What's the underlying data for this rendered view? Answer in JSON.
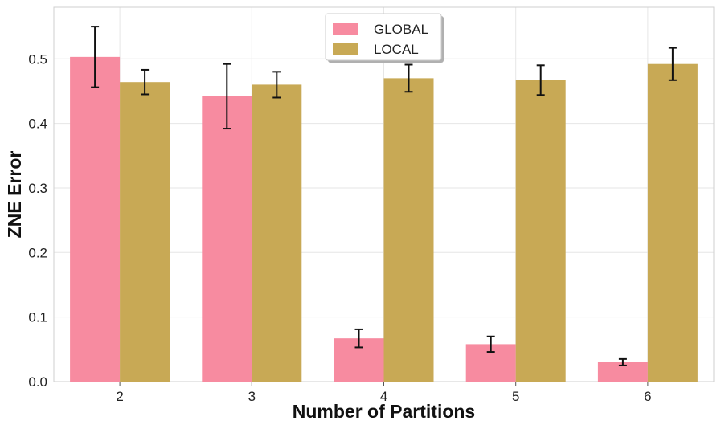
{
  "chart_data": {
    "type": "bar",
    "title": "",
    "xlabel": "Number of Partitions",
    "ylabel": "ZNE Error",
    "categories": [
      "2",
      "3",
      "4",
      "5",
      "6"
    ],
    "ylim": [
      0,
      0.58
    ],
    "yticks": [
      "0.0",
      "0.1",
      "0.2",
      "0.3",
      "0.4",
      "0.5"
    ],
    "series": [
      {
        "name": "GLOBAL",
        "color": "#f78ba0",
        "values": [
          0.503,
          0.442,
          0.067,
          0.058,
          0.03
        ],
        "errors": [
          0.047,
          0.05,
          0.014,
          0.012,
          0.005
        ]
      },
      {
        "name": "LOCAL",
        "color": "#c8a955",
        "values": [
          0.464,
          0.46,
          0.47,
          0.467,
          0.492
        ],
        "errors": [
          0.019,
          0.02,
          0.021,
          0.023,
          0.025
        ]
      }
    ],
    "grid": true,
    "legend_position": "top-center"
  }
}
